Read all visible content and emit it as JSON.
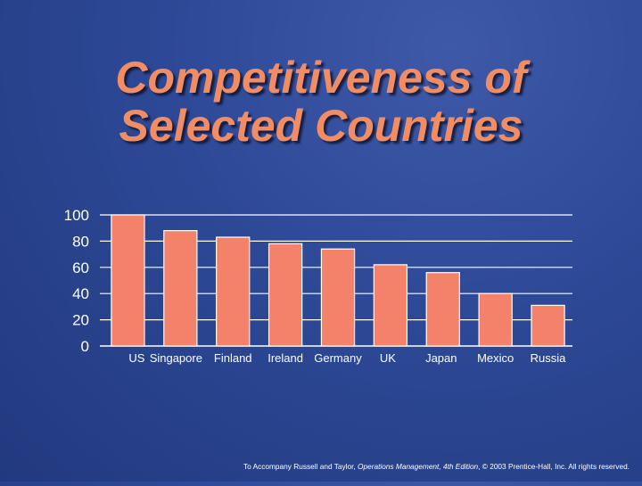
{
  "slide": {
    "title_line1": "Competitiveness of",
    "title_line2": "Selected Countries",
    "footer": {
      "prefix": "To Accompany Russell and Taylor, ",
      "book": "Operations Management, 4th Edition",
      "suffix": ",  © 2003 Prentice-Hall, Inc. All rights reserved."
    }
  },
  "colors": {
    "background": "#2e4a98",
    "title": "#f28d63",
    "bar_fill": "#f4826a",
    "bar_stroke": "#ffffff",
    "gridline": "#ffffff",
    "text": "#ffffff"
  },
  "chart_data": {
    "type": "bar",
    "categories": [
      "US",
      "Singapore",
      "Finland",
      "Ireland",
      "Germany",
      "UK",
      "Japan",
      "Mexico",
      "Russia"
    ],
    "values": [
      100,
      88,
      83,
      78,
      74,
      62,
      56,
      40,
      31
    ],
    "title": "",
    "xlabel": "",
    "ylabel": "",
    "ylim": [
      0,
      100
    ],
    "yticks": [
      0,
      20,
      40,
      60,
      80,
      100
    ],
    "grid": true,
    "legend": "none"
  }
}
